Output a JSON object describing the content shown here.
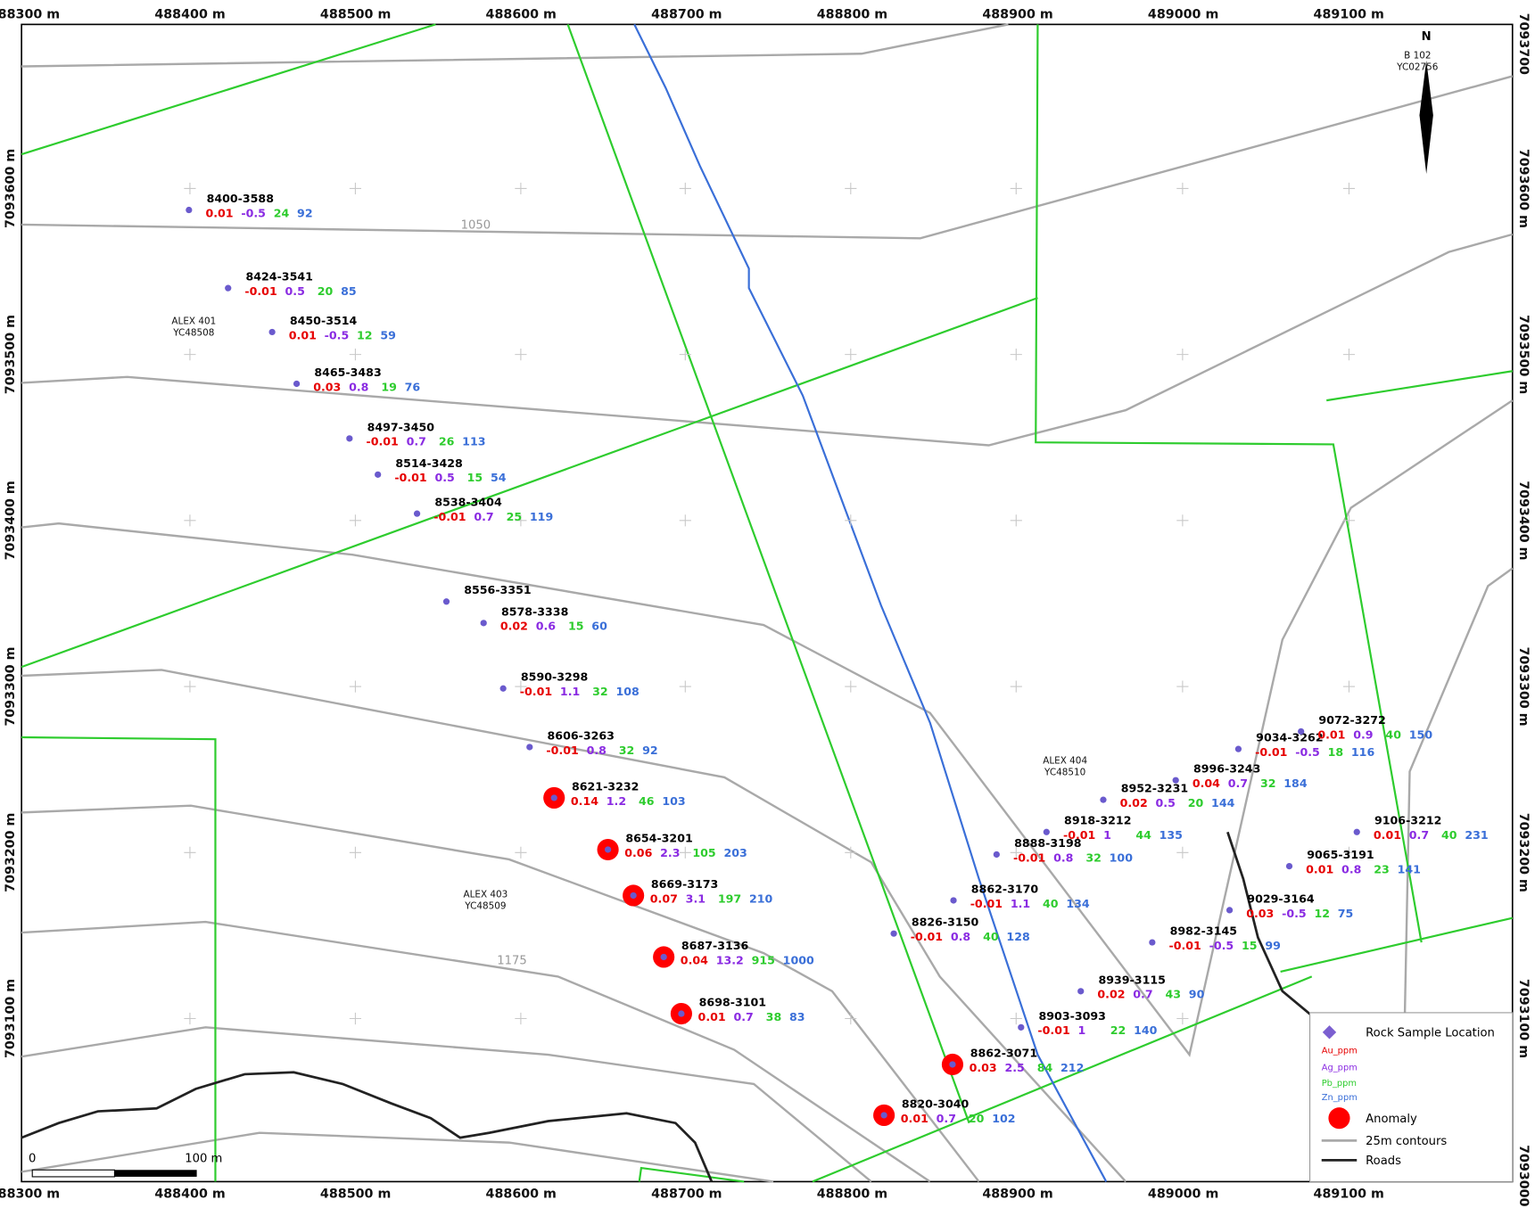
{
  "axes": {
    "top": [
      "488300 m",
      "488400 m",
      "488500 m",
      "488600 m",
      "488700 m",
      "488800 m",
      "488900 m",
      "489000 m",
      "489100 m"
    ],
    "bottom": [
      "488300 m",
      "488400 m",
      "488500 m",
      "488600 m",
      "488700 m",
      "488800 m",
      "488900 m",
      "489000 m",
      "489100 m"
    ],
    "left": [
      "7093600 m",
      "7093500 m",
      "7093400 m",
      "7093300 m",
      "7093200 m",
      "7093100 m"
    ],
    "right": [
      "7093700",
      "7093600 m",
      "7093500 m",
      "7093400 m",
      "7093300 m",
      "7093200 m",
      "7093100 m",
      "7093000 m"
    ]
  },
  "contour_labels": [
    "1050",
    "1175"
  ],
  "claims": [
    {
      "name": "ALEX 401",
      "tag": "YC48508"
    },
    {
      "name": "ALEX 403",
      "tag": "YC48509"
    },
    {
      "name": "ALEX 404",
      "tag": "YC48510"
    },
    {
      "name": "B 102",
      "tag": "YC02756"
    }
  ],
  "north": "N",
  "scale_bar": {
    "start": "0",
    "end": "100 m"
  },
  "samples": [
    {
      "id": "8400-3588",
      "au": 0.01,
      "ag": -0.5,
      "pb": 24,
      "zn": 92
    },
    {
      "id": "8424-3541",
      "au": -0.01,
      "ag": 0.5,
      "pb": 20,
      "zn": 85
    },
    {
      "id": "8450-3514",
      "au": 0.01,
      "ag": -0.5,
      "pb": 12,
      "zn": 59
    },
    {
      "id": "8465-3483",
      "au": 0.03,
      "ag": 0.8,
      "pb": 19,
      "zn": 76
    },
    {
      "id": "8497-3450",
      "au": -0.01,
      "ag": 0.7,
      "pb": 26,
      "zn": 113
    },
    {
      "id": "8514-3428",
      "au": -0.01,
      "ag": 0.5,
      "pb": 15,
      "zn": 54
    },
    {
      "id": "8538-3404",
      "au": -0.01,
      "ag": 0.7,
      "pb": 25,
      "zn": 119
    },
    {
      "id": "8556-3351"
    },
    {
      "id": "8578-3338",
      "au": 0.02,
      "ag": 0.6,
      "pb": 15,
      "zn": 60
    },
    {
      "id": "8590-3298",
      "au": -0.01,
      "ag": 1.1,
      "pb": 32,
      "zn": 108
    },
    {
      "id": "8606-3263",
      "au": -0.01,
      "ag": 0.8,
      "pb": 32,
      "zn": 92
    },
    {
      "id": "8621-3232",
      "au": 0.14,
      "ag": 1.2,
      "pb": 46,
      "zn": 103,
      "anomaly": true
    },
    {
      "id": "8654-3201",
      "au": 0.06,
      "ag": 2.3,
      "pb": 105,
      "zn": 203,
      "anomaly": true
    },
    {
      "id": "8669-3173",
      "au": 0.07,
      "ag": 3.1,
      "pb": 197,
      "zn": 210,
      "anomaly": true
    },
    {
      "id": "8687-3136",
      "au": 0.04,
      "ag": 13.2,
      "pb": 915,
      "zn": 1000,
      "anomaly": true
    },
    {
      "id": "8698-3101",
      "au": 0.01,
      "ag": 0.7,
      "pb": 38,
      "zn": 83,
      "anomaly": true
    },
    {
      "id": "8862-3071",
      "au": 0.03,
      "ag": 2.5,
      "pb": 84,
      "zn": 212,
      "anomaly": true
    },
    {
      "id": "8820-3040",
      "au": 0.01,
      "ag": 0.7,
      "pb": 20,
      "zn": 102,
      "anomaly": true
    },
    {
      "id": "8903-3093",
      "au": -0.01,
      "ag": 1,
      "pb": 22,
      "zn": 140
    },
    {
      "id": "8939-3115",
      "au": 0.02,
      "ag": 0.7,
      "pb": 43,
      "zn": 90
    },
    {
      "id": "8982-3145",
      "au": -0.01,
      "ag": -0.5,
      "pb": 15,
      "zn": 99
    },
    {
      "id": "9029-3164",
      "au": 0.03,
      "ag": -0.5,
      "pb": 12,
      "zn": 75
    },
    {
      "id": "8826-3150",
      "au": -0.01,
      "ag": 0.8,
      "pb": 40,
      "zn": 128
    },
    {
      "id": "8862-3170",
      "au": -0.01,
      "ag": 1.1,
      "pb": 40,
      "zn": 134
    },
    {
      "id": "8888-3198",
      "au": -0.01,
      "ag": 0.8,
      "pb": 32,
      "zn": 100
    },
    {
      "id": "8918-3212",
      "au": -0.01,
      "ag": 1,
      "pb": 44,
      "zn": 135
    },
    {
      "id": "8952-3231",
      "au": 0.02,
      "ag": 0.5,
      "pb": 20,
      "zn": 144
    },
    {
      "id": "8996-3243",
      "au": 0.04,
      "ag": 0.7,
      "pb": 32,
      "zn": 184
    },
    {
      "id": "9034-3262",
      "au": -0.01,
      "ag": -0.5,
      "pb": 18,
      "zn": 116
    },
    {
      "id": "9072-3272",
      "au": 0.01,
      "ag": 0.9,
      "pb": 40,
      "zn": 150
    },
    {
      "id": "9106-3212",
      "au": 0.01,
      "ag": 0.7,
      "pb": 40,
      "zn": 231
    },
    {
      "id": "9065-3191",
      "au": 0.01,
      "ag": 0.8,
      "pb": 23,
      "zn": 141
    }
  ],
  "legend": {
    "sample": "Rock Sample Location",
    "au": "Au_ppm",
    "ag": "Ag_ppm",
    "pb": "Pb_ppm",
    "zn": "Zn_ppm",
    "anomaly": "Anomaly",
    "contours": "25m contours",
    "roads": "Roads"
  }
}
